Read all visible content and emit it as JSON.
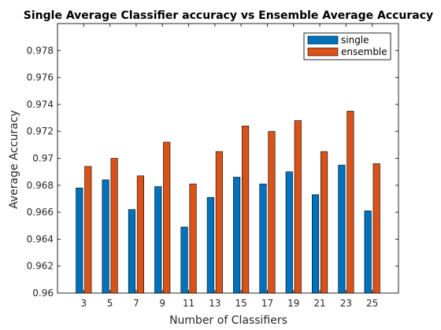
{
  "chart_data": {
    "type": "bar",
    "title": "Single Average Classifier accuracy vs Ensemble Average Accuracy",
    "xlabel": "Number of Classifiers",
    "ylabel": "Average Accuracy",
    "categories": [
      "3",
      "5",
      "7",
      "9",
      "11",
      "13",
      "15",
      "17",
      "19",
      "21",
      "23",
      "25"
    ],
    "ylim": [
      0.96,
      0.98
    ],
    "yticks": [
      0.96,
      0.962,
      0.964,
      0.966,
      0.968,
      0.97,
      0.972,
      0.974,
      0.976,
      0.978
    ],
    "ytick_labels": [
      "0.96",
      "0.962",
      "0.964",
      "0.966",
      "0.968",
      "0.97",
      "0.972",
      "0.974",
      "0.976",
      "0.978"
    ],
    "grid": false,
    "legend_position": "top-right",
    "series": [
      {
        "name": "single",
        "color": "#0072BD",
        "values": [
          0.9678,
          0.9684,
          0.9662,
          0.9679,
          0.9649,
          0.9671,
          0.9686,
          0.9681,
          0.969,
          0.9673,
          0.9695,
          0.9661
        ]
      },
      {
        "name": "ensemble",
        "color": "#D95319",
        "values": [
          0.9694,
          0.97,
          0.9687,
          0.9712,
          0.9681,
          0.9705,
          0.9724,
          0.972,
          0.9728,
          0.9705,
          0.9735,
          0.9696
        ]
      }
    ]
  }
}
